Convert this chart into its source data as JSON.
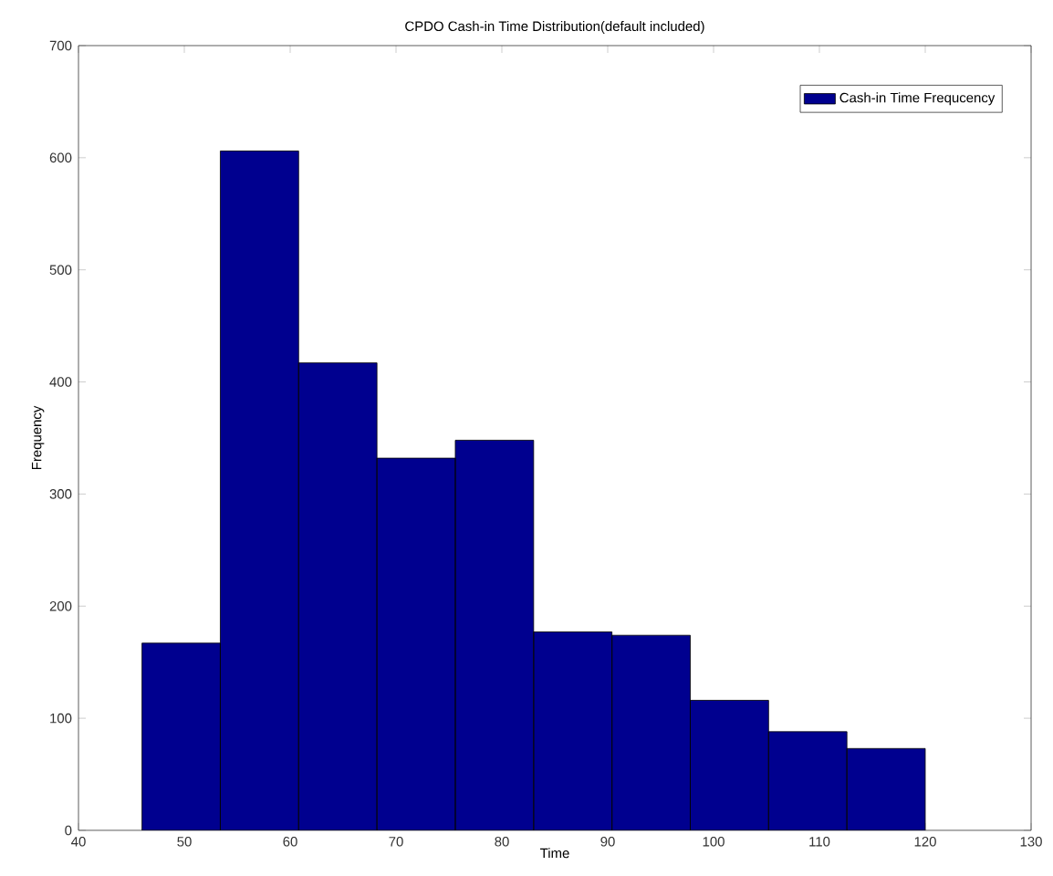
{
  "chart_data": {
    "type": "histogram",
    "title": "CPDO Cash-in Time Distribution(default included)",
    "xlabel": "Time",
    "ylabel": "Frequency",
    "bins": [
      46,
      53.4,
      60.8,
      68.2,
      75.6,
      83,
      90.4,
      97.8,
      105.2,
      112.6,
      120
    ],
    "series": [
      {
        "name": "Cash-in Time Frequcency",
        "color": "#00008f",
        "values": [
          167,
          606,
          417,
          332,
          348,
          177,
          174,
          116,
          88,
          73
        ]
      }
    ],
    "xlim": [
      40,
      130
    ],
    "xticks": [
      40,
      50,
      60,
      70,
      80,
      90,
      100,
      110,
      120,
      130
    ],
    "ylim": [
      0,
      700
    ],
    "yticks": [
      0,
      100,
      200,
      300,
      400,
      500,
      600,
      700
    ],
    "legend": "top right",
    "grid": false
  }
}
